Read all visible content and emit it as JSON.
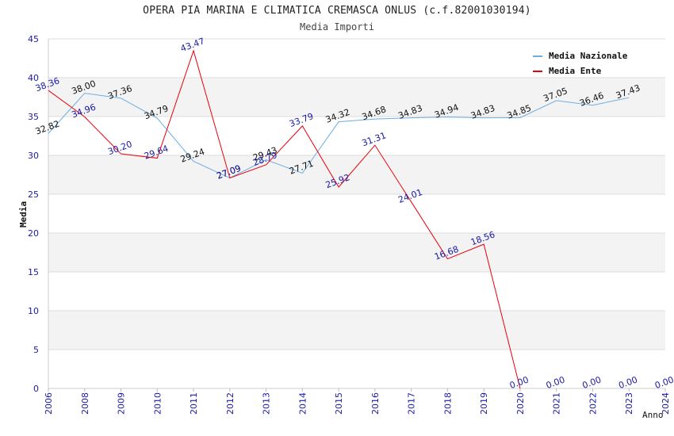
{
  "chart_data": {
    "type": "line",
    "title": "OPERA PIA MARINA E CLIMATICA CREMASCA ONLUS (c.f.82001030194)",
    "subtitle": "Media Importi",
    "xlabel": "Anno",
    "ylabel": "Media",
    "ylim": [
      0,
      45
    ],
    "yticks": [
      "0",
      "5",
      "10",
      "15",
      "20",
      "25",
      "30",
      "35",
      "40",
      "45"
    ],
    "categories": [
      "2006",
      "2008",
      "2009",
      "2010",
      "2011",
      "2012",
      "2013",
      "2014",
      "2015",
      "2016",
      "2017",
      "2018",
      "2019",
      "2020",
      "2021",
      "2022",
      "2023",
      "2024"
    ],
    "grid": true,
    "legend_position": "top-right",
    "series": [
      {
        "name": "Media Nazionale",
        "color": "#6aaee6",
        "values": [
          32.82,
          38.0,
          37.36,
          34.79,
          29.24,
          27.09,
          29.43,
          27.71,
          34.32,
          34.68,
          34.83,
          34.94,
          34.83,
          34.85,
          37.05,
          36.46,
          37.43,
          null
        ],
        "labels": [
          "32.82",
          "38.00",
          "37.36",
          "34.79",
          "29.24",
          "27.09",
          "29.43",
          "27.71",
          "34.32",
          "34.68",
          "34.83",
          "34.94",
          "34.83",
          "34.85",
          "37.05",
          "36.46",
          "37.43",
          ""
        ]
      },
      {
        "name": "Media Ente",
        "color": "#e8000b",
        "values": [
          38.36,
          34.96,
          30.2,
          29.64,
          43.47,
          27.09,
          28.79,
          33.79,
          25.92,
          31.31,
          24.01,
          16.68,
          18.56,
          0.0,
          null,
          null,
          null,
          null
        ],
        "labels": [
          "38.36",
          "34.96",
          "30.20",
          "29.64",
          "43.47",
          "27.09",
          "28.79",
          "33.79",
          "25.92",
          "31.31",
          "24.01",
          "16.68",
          "18.56",
          "0.00",
          "0.00",
          "0.00",
          "0.00",
          "0.00"
        ]
      }
    ]
  }
}
